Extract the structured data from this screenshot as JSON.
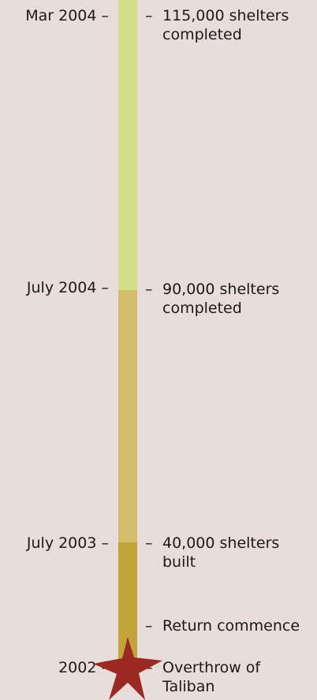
{
  "timeline": {
    "dates": [
      {
        "label": "Mar 2004 –"
      },
      {
        "label": "July 2004 –"
      },
      {
        "label": "July 2003 –"
      },
      {
        "label": "2002 –"
      }
    ],
    "events": [
      {
        "line1": "115,000 shelters",
        "line2": "completed"
      },
      {
        "line1": "90,000 shelters",
        "line2": "completed"
      },
      {
        "line1": "40,000 shelters",
        "line2": "built"
      },
      {
        "line1": "Return commence",
        "line2": ""
      },
      {
        "line1": "Overthrow of",
        "line2": "Taliban"
      }
    ],
    "dash": "–"
  },
  "colors": {
    "background": "#e8ddd8",
    "segment_top": "#d4de8a",
    "segment_middle": "#d3bd6c",
    "segment_bottom": "#c2a43c",
    "star": "#9b2a24"
  },
  "icons": {
    "start_marker": "star-icon"
  }
}
